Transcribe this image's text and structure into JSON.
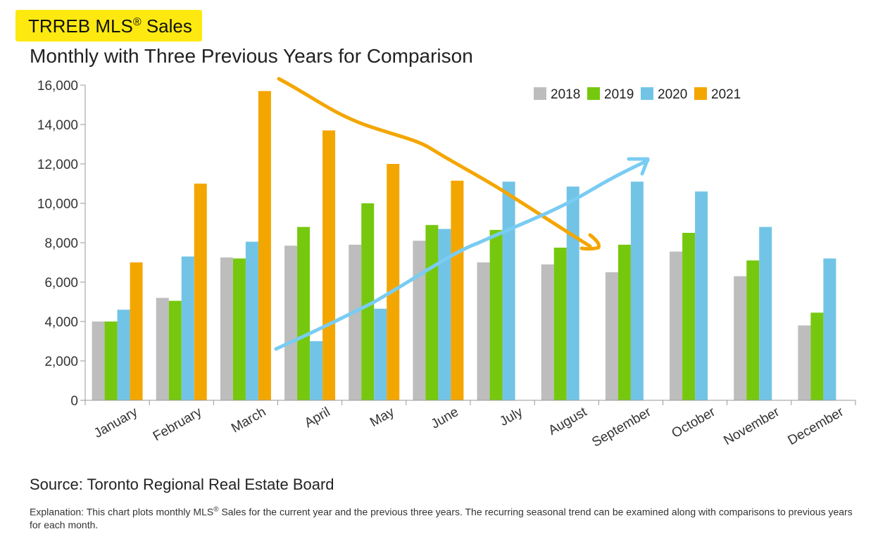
{
  "header": {
    "title_prefix": "TRREB MLS",
    "title_mark": "®",
    "title_suffix": " Sales",
    "subtitle": "Monthly with Three Previous Years for Comparison"
  },
  "footer": {
    "source": "Source: Toronto Regional Real Estate Board",
    "explanation_pre": "Explanation: This chart plots monthly MLS",
    "explanation_mark": "®",
    "explanation_post": " Sales for the current year and the previous three years. The recurring seasonal trend can be examined along with comparisons to previous years for each month."
  },
  "chart_data": {
    "type": "bar",
    "title": "TRREB MLS® Sales",
    "subtitle": "Monthly with Three Previous Years for Comparison",
    "categories": [
      "January",
      "February",
      "March",
      "April",
      "May",
      "June",
      "July",
      "August",
      "September",
      "October",
      "November",
      "December"
    ],
    "ylim": [
      0,
      16000
    ],
    "yticks": [
      0,
      2000,
      4000,
      6000,
      8000,
      10000,
      12000,
      14000,
      16000
    ],
    "ytick_labels": [
      "0",
      "2,000",
      "4,000",
      "6,000",
      "8,000",
      "10,000",
      "12,000",
      "14,000",
      "16,000"
    ],
    "grid": false,
    "legend": "top-right",
    "series": [
      {
        "name": "2018",
        "color": "#bdbdbd",
        "values": [
          4000,
          5200,
          7250,
          7850,
          7900,
          8100,
          7000,
          6900,
          6500,
          7550,
          6300,
          3800
        ]
      },
      {
        "name": "2019",
        "color": "#76c80e",
        "values": [
          4000,
          5050,
          7200,
          8800,
          10000,
          8900,
          8650,
          7750,
          7900,
          8500,
          7100,
          4450
        ]
      },
      {
        "name": "2020",
        "color": "#72c4e6",
        "values": [
          4600,
          7300,
          8050,
          3000,
          4650,
          8700,
          11100,
          10850,
          11100,
          10600,
          8800,
          7200
        ]
      },
      {
        "name": "2021",
        "color": "#f4a600",
        "values": [
          7000,
          11000,
          15700,
          13700,
          12000,
          11150,
          null,
          null,
          null,
          null,
          null,
          null
        ]
      }
    ],
    "annotations": {
      "downtrend_arrow_color": "#f4a600",
      "uptrend_arrow_color": "#79ccf2"
    }
  }
}
